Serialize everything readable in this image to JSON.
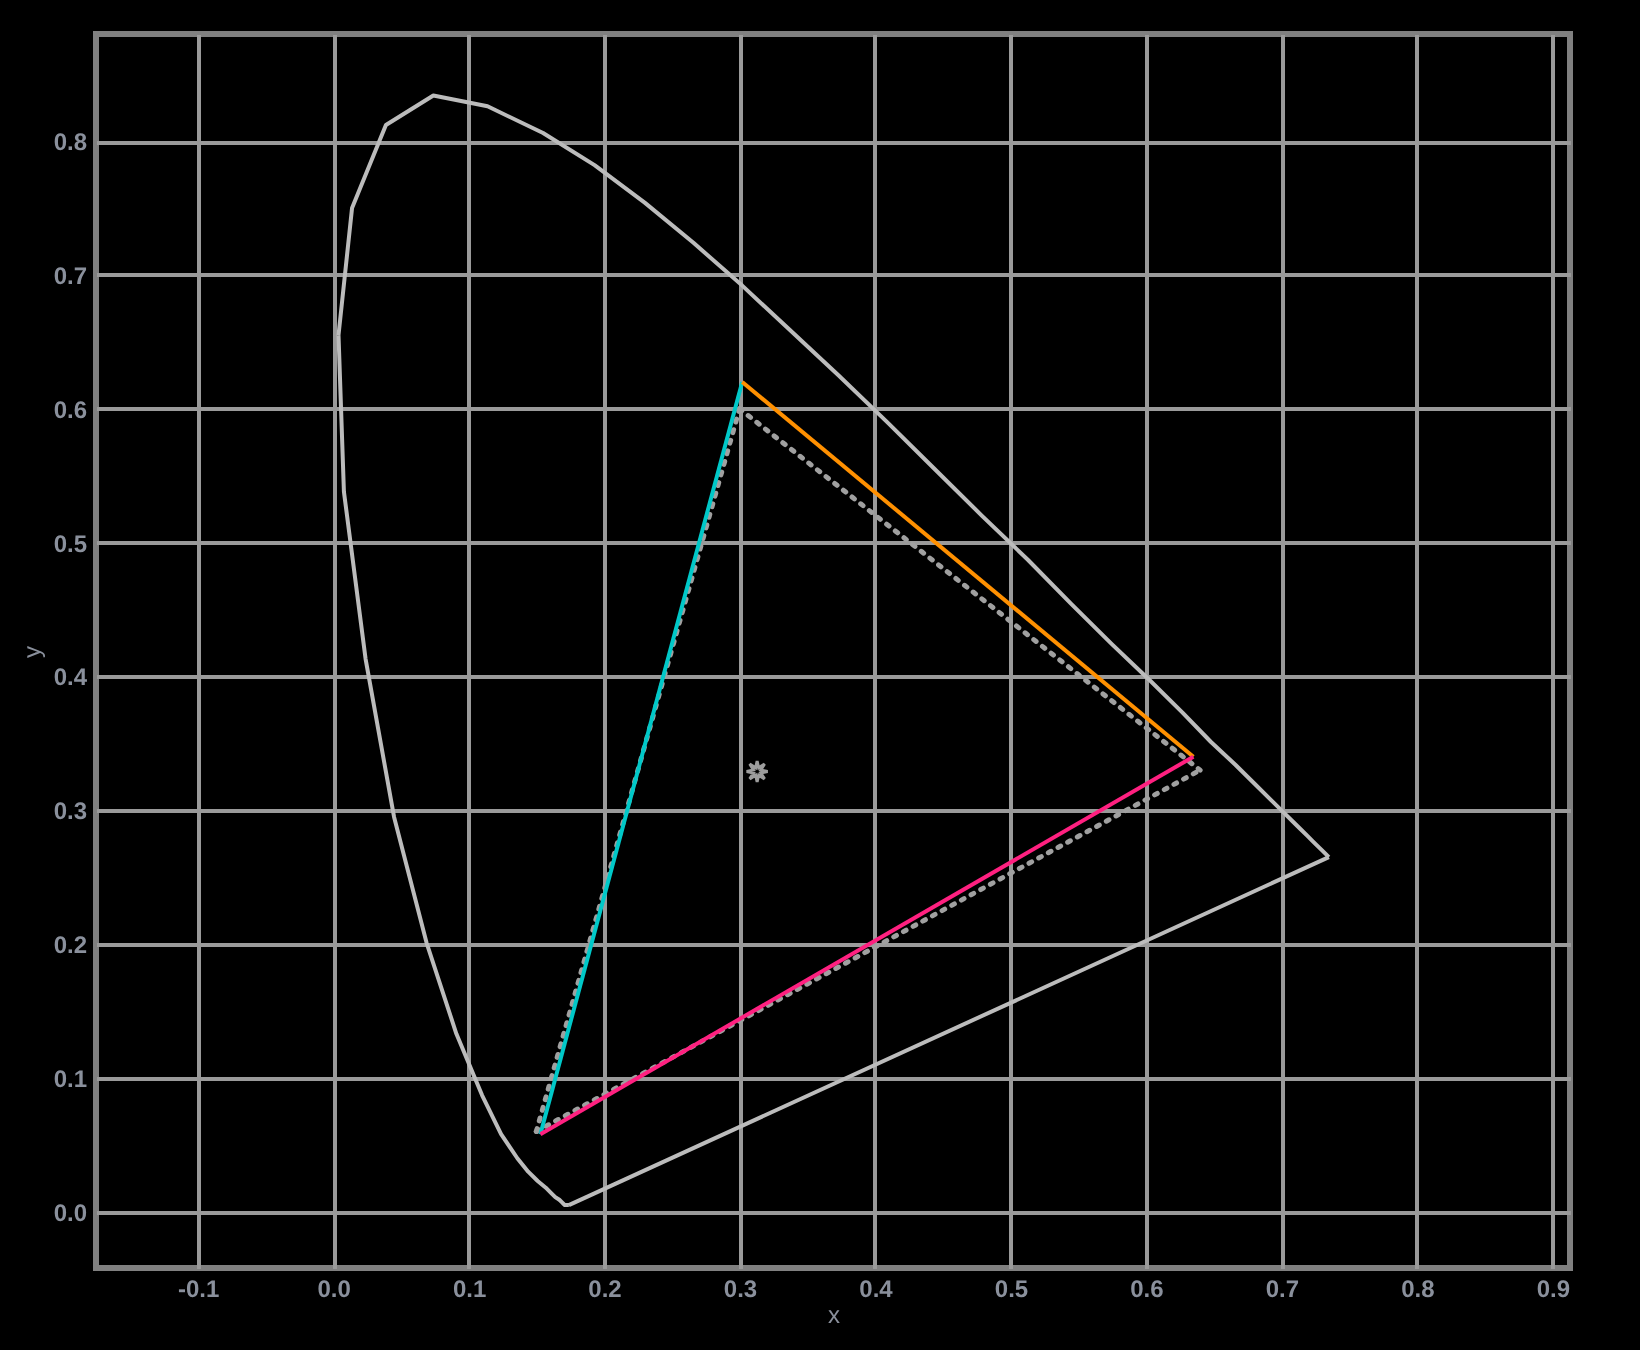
{
  "chart_data": {
    "type": "line",
    "xlabel": "x",
    "ylabel": "y",
    "xlim": [
      -0.175,
      0.913
    ],
    "ylim": [
      -0.042,
      0.88
    ],
    "xticks": [
      -0.1,
      {
        "value": 0,
        "label": "0.0"
      },
      0.1,
      0.2,
      0.3,
      0.4,
      0.5,
      0.6,
      0.7,
      0.8,
      0.9
    ],
    "yticks": [
      {
        "value": 0,
        "label": "0.0"
      },
      0.1,
      0.2,
      0.3,
      0.4,
      0.5,
      0.6,
      0.7,
      0.8
    ],
    "grid": true,
    "series": [
      {
        "line_style": "solid",
        "color": "#bcbcbc",
        "x": [
          0.004,
          0.008,
          0.024,
          0.045,
          0.069,
          0.091,
          0.11,
          0.124,
          0.136,
          0.144,
          0.151,
          0.157,
          0.161,
          0.164,
          0.167,
          0.169,
          0.17,
          0.171,
          0.173,
          0.174,
          null,
          0.004,
          0.014,
          0.039,
          0.074,
          0.114,
          0.155,
          0.193,
          0.23,
          0.266,
          0.302,
          0.337,
          0.373,
          0.409,
          0.444,
          0.479,
          0.513,
          0.545,
          0.575,
          0.603,
          0.627,
          0.648,
          0.666,
          0.68,
          0.692,
          0.701,
          0.708,
          0.714,
          0.719,
          0.723,
          0.726,
          0.73,
          0.733,
          0.735,
          null,
          0.174,
          0.735
        ],
        "values": [
          0.655,
          0.538,
          0.413,
          0.295,
          0.201,
          0.133,
          0.087,
          0.058,
          0.04,
          0.03,
          0.023,
          0.018,
          0.014,
          0.011,
          0.009,
          0.007,
          0.006,
          0.005,
          0.005,
          0.005,
          null,
          0.655,
          0.75,
          0.812,
          0.834,
          0.826,
          0.806,
          0.782,
          0.754,
          0.724,
          0.692,
          0.659,
          0.625,
          0.59,
          0.555,
          0.52,
          0.487,
          0.454,
          0.424,
          0.397,
          0.373,
          0.351,
          0.334,
          0.32,
          0.308,
          0.299,
          0.292,
          0.286,
          0.281,
          0.277,
          0.274,
          0.27,
          0.267,
          0.265,
          null,
          0.005,
          0.265
        ]
      },
      {
        "line_style": "dotted",
        "color": "#a0a0a0",
        "x": [
          0.15,
          0.3
        ],
        "values": [
          0.06,
          0.6
        ]
      },
      {
        "line_style": "dotted",
        "color": "#a0a0a0",
        "x": [
          0.3,
          0.64
        ],
        "values": [
          0.6,
          0.33
        ]
      },
      {
        "line_style": "dotted",
        "color": "#a0a0a0",
        "x": [
          0.15,
          0.64
        ],
        "values": [
          0.06,
          0.33
        ]
      },
      {
        "line_style": "solid",
        "color": "#00c8c8",
        "x": [
          0.153,
          0.302
        ],
        "values": [
          0.058,
          0.62
        ]
      },
      {
        "line_style": "solid",
        "color": "#ff9000",
        "x": [
          0.302,
          0.635
        ],
        "values": [
          0.62,
          0.34
        ]
      },
      {
        "line_style": "solid",
        "color": "#ff2080",
        "x": [
          0.153,
          0.635
        ],
        "values": [
          0.058,
          0.34
        ]
      },
      {
        "type": "scatter",
        "marker": "star",
        "color": "#e0e0e0",
        "x": [
          0.313
        ],
        "values": [
          0.329
        ]
      }
    ]
  }
}
